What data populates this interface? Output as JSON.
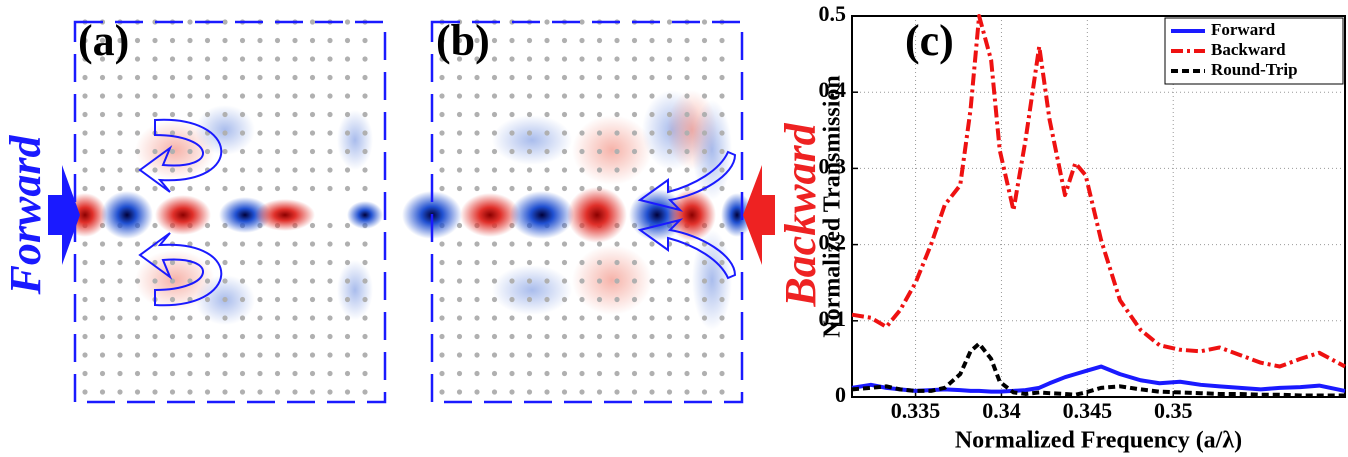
{
  "panels": [
    {
      "label": "(a)",
      "side": "Forward",
      "color": "#1a1aff"
    },
    {
      "label": "(b)",
      "side": "Backward",
      "color": "#ee2222"
    }
  ],
  "chart_data": {
    "type": "line",
    "label": "(c)",
    "x_label": "Normalized Frequency (a/λ)",
    "y_label": "Normalized Transmission",
    "x": [
      0.3313,
      0.3324,
      0.3333,
      0.3341,
      0.335,
      0.3359,
      0.3367,
      0.3376,
      0.3382,
      0.3387,
      0.3394,
      0.3399,
      0.3407,
      0.3414,
      0.3422,
      0.3428,
      0.3437,
      0.3443,
      0.3449,
      0.3458,
      0.3469,
      0.3481,
      0.3492,
      0.3504,
      0.3516,
      0.3527,
      0.3539,
      0.3551,
      0.3562,
      0.3574,
      0.3585,
      0.36
    ],
    "series": [
      {
        "name": "Forward",
        "color": "#1a1aff",
        "style": "solid",
        "values": [
          0.012,
          0.016,
          0.012,
          0.01,
          0.008,
          0.009,
          0.01,
          0.009,
          0.008,
          0.008,
          0.007,
          0.007,
          0.008,
          0.009,
          0.012,
          0.018,
          0.026,
          0.03,
          0.034,
          0.04,
          0.03,
          0.022,
          0.018,
          0.02,
          0.016,
          0.014,
          0.012,
          0.01,
          0.012,
          0.013,
          0.015,
          0.008
        ]
      },
      {
        "name": "Backward",
        "color": "#ee1111",
        "style": "dashdot",
        "values": [
          0.108,
          0.104,
          0.092,
          0.114,
          0.15,
          0.2,
          0.252,
          0.278,
          0.377,
          0.5,
          0.442,
          0.324,
          0.245,
          0.337,
          0.46,
          0.364,
          0.265,
          0.307,
          0.291,
          0.206,
          0.127,
          0.088,
          0.068,
          0.062,
          0.06,
          0.065,
          0.055,
          0.045,
          0.04,
          0.05,
          0.058,
          0.04
        ]
      },
      {
        "name": "Round-Trip",
        "color": "#000000",
        "style": "dashed",
        "values": [
          0.01,
          0.012,
          0.014,
          0.01,
          0.008,
          0.008,
          0.012,
          0.03,
          0.06,
          0.07,
          0.05,
          0.02,
          0.006,
          0.004,
          0.006,
          0.005,
          0.004,
          0.003,
          0.006,
          0.012,
          0.014,
          0.01,
          0.007,
          0.006,
          0.005,
          0.004,
          0.004,
          0.003,
          0.003,
          0.002,
          0.002,
          0.002
        ]
      }
    ],
    "xlim": [
      0.3313,
      0.36
    ],
    "xticks": [
      0.335,
      0.34,
      0.345,
      0.35
    ],
    "ylim": [
      0,
      0.5
    ],
    "yticks": [
      0,
      0.1,
      0.2,
      0.3,
      0.4,
      0.5
    ],
    "grid": true,
    "legend": "upper right"
  }
}
